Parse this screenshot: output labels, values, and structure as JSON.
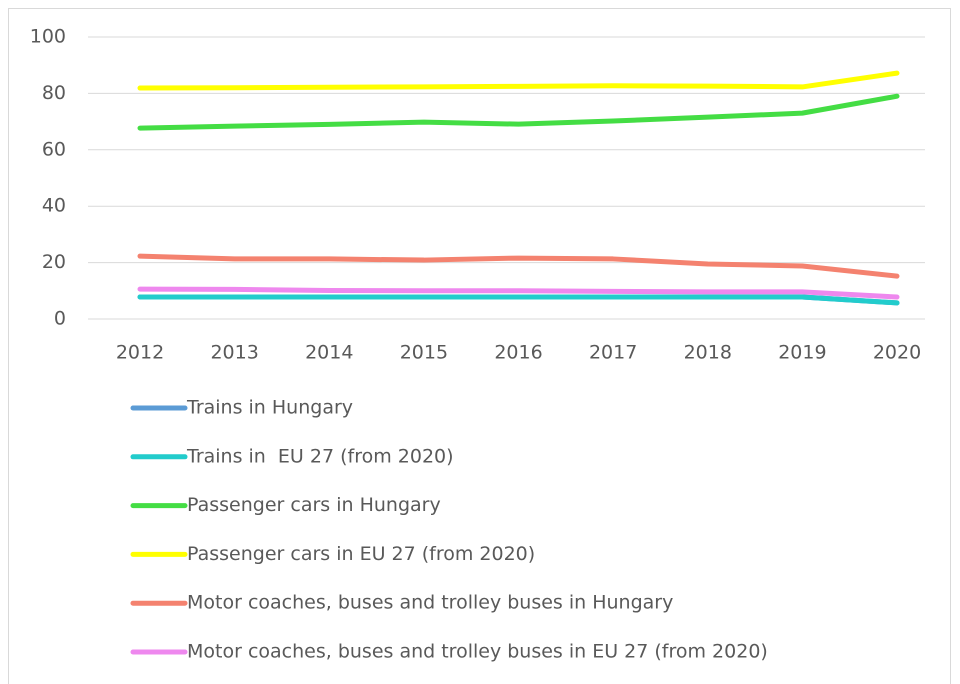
{
  "chart_data": {
    "type": "line",
    "categories": [
      "2012",
      "2013",
      "2014",
      "2015",
      "2016",
      "2017",
      "2018",
      "2019",
      "2020"
    ],
    "series": [
      {
        "name": "Trains in Hungary",
        "color": "#5b9bd5",
        "values": [
          7.8,
          7.8,
          7.8,
          7.8,
          7.8,
          7.8,
          7.8,
          7.8,
          5.7
        ]
      },
      {
        "name": "Trains in  EU 27 (from 2020)",
        "color": "#22cccc",
        "values": [
          7.8,
          7.8,
          7.8,
          7.8,
          7.8,
          7.8,
          7.8,
          7.8,
          5.7
        ]
      },
      {
        "name": "Passenger cars in Hungary",
        "color": "#44dd44",
        "values": [
          67.7,
          68.4,
          69,
          69.8,
          69.1,
          70.2,
          71.6,
          73,
          79
        ]
      },
      {
        "name": "Passenger cars in EU 27 (from 2020)",
        "color": "#ffff00",
        "values": [
          81.9,
          82,
          82.2,
          82.3,
          82.5,
          82.7,
          82.6,
          82.3,
          87.2
        ]
      },
      {
        "name": "Motor coaches, buses and trolley buses in Hungary",
        "color": "#f4826f",
        "values": [
          22.3,
          21.3,
          21.3,
          20.9,
          21.6,
          21.3,
          19.5,
          18.8,
          15.2
        ]
      },
      {
        "name": "Motor coaches, buses and trolley buses in EU 27 (from 2020)",
        "color": "#ee88ee",
        "values": [
          10.6,
          10.5,
          10.1,
          10,
          10,
          9.8,
          9.6,
          9.6,
          7.8
        ]
      }
    ],
    "ylim": [
      0,
      100
    ],
    "yticks": [
      0,
      20,
      40,
      60,
      80,
      100
    ],
    "grid": true,
    "legend": "bottom"
  }
}
